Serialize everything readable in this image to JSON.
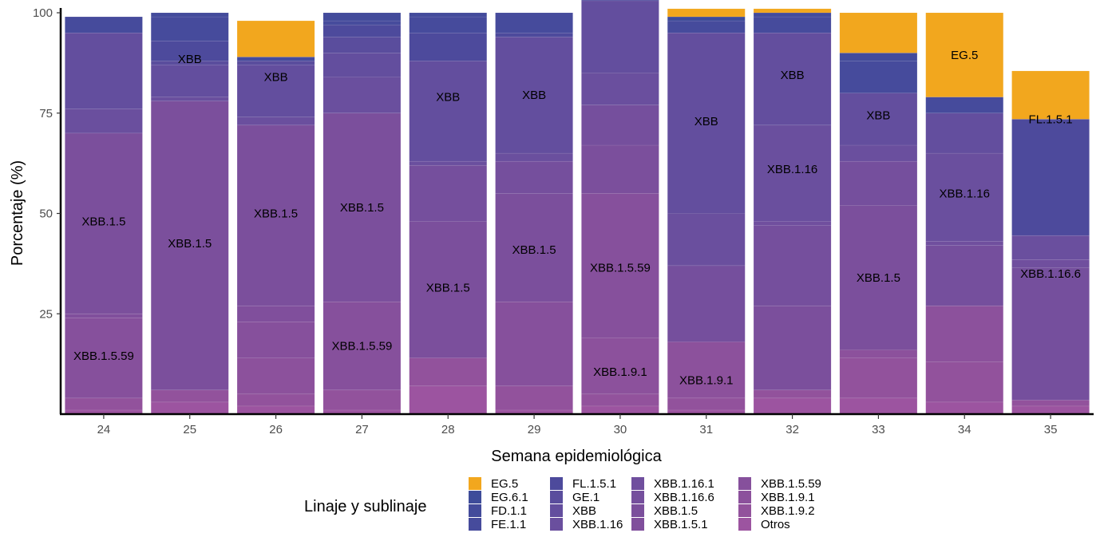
{
  "chart_data": {
    "type": "bar",
    "stacked": true,
    "title": "",
    "xlabel": "Semana epidemiológica",
    "ylabel": "Porcentaje (%)",
    "ylim": [
      0,
      100
    ],
    "yticks": [
      "25",
      "50",
      "75",
      "100"
    ],
    "ytick_values": [
      25,
      50,
      75,
      100
    ],
    "categories": [
      "24",
      "25",
      "26",
      "27",
      "28",
      "29",
      "30",
      "31",
      "32",
      "33",
      "34",
      "35"
    ],
    "legend": {
      "title": "Linaje y sublinaje",
      "placement": "bottom",
      "columns": [
        [
          "EG.5",
          "EG.6.1",
          "FD.1.1",
          "FE.1.1"
        ],
        [
          "FL.1.5.1",
          "GE.1",
          "XBB",
          "XBB.1.16"
        ],
        [
          "XBB.1.16.1",
          "XBB.1.16.6",
          "XBB.1.5",
          "XBB.1.5.1"
        ],
        [
          "XBB.1.5.59",
          "XBB.1.9.1",
          "XBB.1.9.2",
          "Otros"
        ]
      ]
    },
    "colors": {
      "EG.5": "#f2a71e",
      "EG.6.1": "#3e4c9a",
      "FD.1.1": "#434b9b",
      "FE.1.1": "#464b9c",
      "FL.1.5.1": "#4d4a9c",
      "GE.1": "#5a4d9d",
      "XBB": "#634e9e",
      "XBB.1.16": "#6a4f9e",
      "XBB.1.16.1": "#704f9e",
      "XBB.1.16.6": "#754f9d",
      "XBB.1.5": "#7b4f9c",
      "XBB.1.5.1": "#804f9c",
      "XBB.1.5.59": "#86509c",
      "XBB.1.9.1": "#8c519c",
      "XBB.1.9.2": "#92529c",
      "Otros": "#9c54a0"
    },
    "series": [
      {
        "name": "Otros",
        "values": [
          1,
          3,
          2,
          1,
          7,
          1,
          2,
          1,
          4,
          4,
          3,
          2
        ]
      },
      {
        "name": "XBB.1.9.2",
        "values": [
          3,
          3,
          3,
          5,
          7,
          6,
          3,
          3,
          2,
          10,
          10,
          1.5
        ]
      },
      {
        "name": "XBB.1.9.1",
        "values": [
          0,
          0,
          9,
          0,
          0,
          0,
          14,
          14,
          0,
          2,
          14,
          0
        ]
      },
      {
        "name": "XBB.1.5.59",
        "values": [
          20,
          0,
          9,
          22,
          0,
          21,
          36,
          0,
          0,
          0,
          0,
          0
        ]
      },
      {
        "name": "XBB.1.5.1",
        "values": [
          1,
          0,
          4,
          0,
          0,
          0,
          0,
          0,
          0,
          0,
          0,
          0
        ]
      },
      {
        "name": "XBB.1.5",
        "values": [
          45,
          72,
          45,
          47,
          34,
          27,
          12,
          0,
          21,
          36,
          0,
          0
        ]
      },
      {
        "name": "XBB.1.16.6",
        "values": [
          0,
          0,
          0,
          0,
          14,
          8,
          10,
          19,
          20,
          11,
          15,
          33
        ]
      },
      {
        "name": "XBB.1.16.1",
        "values": [
          0,
          0,
          0,
          0,
          0,
          0,
          0,
          0,
          1,
          0,
          1,
          2
        ]
      },
      {
        "name": "XBB.1.16",
        "values": [
          6,
          1,
          2,
          9,
          1,
          2,
          8,
          13,
          24,
          4,
          22,
          6
        ]
      },
      {
        "name": "XBB",
        "values": [
          19,
          8,
          13,
          6,
          25,
          29,
          18,
          45,
          23,
          13,
          10,
          0
        ]
      },
      {
        "name": "GE.1",
        "values": [
          0,
          1,
          1,
          4,
          0,
          0,
          0,
          0,
          0,
          0,
          0,
          0
        ]
      },
      {
        "name": "FL.1.5.1",
        "values": [
          0,
          5,
          0,
          3,
          7,
          1,
          1,
          0,
          0,
          0,
          0,
          29
        ]
      },
      {
        "name": "FE.1.1",
        "values": [
          4,
          6,
          1,
          1,
          4,
          5,
          5,
          3,
          4,
          8,
          4,
          0
        ]
      },
      {
        "name": "FD.1.1",
        "values": [
          0,
          1,
          0,
          2,
          1,
          0,
          0,
          0,
          1,
          2,
          0,
          0
        ]
      },
      {
        "name": "EG.6.1",
        "values": [
          0,
          0,
          0,
          0,
          0,
          0,
          0,
          1,
          0,
          0,
          0,
          0
        ]
      },
      {
        "name": "EG.5",
        "values": [
          0,
          0,
          9,
          0,
          0,
          0,
          0,
          2,
          1,
          10,
          21,
          12
        ]
      }
    ],
    "annotations": [
      {
        "category": "24",
        "text": "XBB.1.5.59",
        "y": 14.5
      },
      {
        "category": "24",
        "text": "XBB.1.5",
        "y": 48
      },
      {
        "category": "25",
        "text": "XBB",
        "y": 88.5
      },
      {
        "category": "25",
        "text": "XBB.1.5",
        "y": 42.5
      },
      {
        "category": "26",
        "text": "XBB",
        "y": 84
      },
      {
        "category": "26",
        "text": "XBB.1.5",
        "y": 50
      },
      {
        "category": "27",
        "text": "XBB.1.5",
        "y": 51.5
      },
      {
        "category": "27",
        "text": "XBB.1.5.59",
        "y": 17
      },
      {
        "category": "28",
        "text": "XBB",
        "y": 79
      },
      {
        "category": "28",
        "text": "XBB.1.5",
        "y": 31.5
      },
      {
        "category": "29",
        "text": "XBB",
        "y": 79.5
      },
      {
        "category": "29",
        "text": "XBB.1.5",
        "y": 41
      },
      {
        "category": "30",
        "text": "XBB.1.5.59",
        "y": 36.5
      },
      {
        "category": "30",
        "text": "XBB.1.9.1",
        "y": 10.5
      },
      {
        "category": "31",
        "text": "XBB",
        "y": 73
      },
      {
        "category": "31",
        "text": "XBB.1.9.1",
        "y": 8.5
      },
      {
        "category": "32",
        "text": "XBB",
        "y": 84.5
      },
      {
        "category": "32",
        "text": "XBB.1.16",
        "y": 61
      },
      {
        "category": "33",
        "text": "XBB",
        "y": 74.5
      },
      {
        "category": "33",
        "text": "XBB.1.5",
        "y": 34
      },
      {
        "category": "34",
        "text": "EG.5",
        "y": 89.5
      },
      {
        "category": "34",
        "text": "XBB.1.16",
        "y": 55
      },
      {
        "category": "35",
        "text": "FL.1.5.1",
        "y": 73.5
      },
      {
        "category": "35",
        "text": "XBB.1.16.6",
        "y": 35
      }
    ],
    "grid": false
  }
}
